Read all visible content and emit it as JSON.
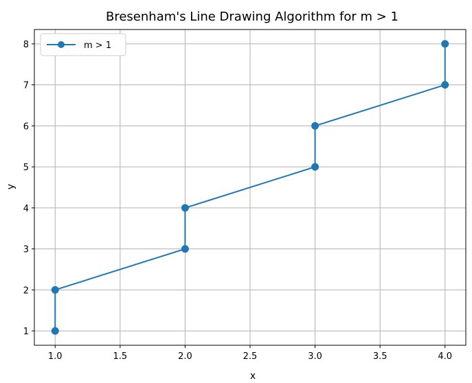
{
  "chart_data": {
    "type": "line",
    "title": "Bresenham's Line Drawing Algorithm for m > 1",
    "xlabel": "x",
    "ylabel": "y",
    "xlim": [
      0.84,
      4.16
    ],
    "ylim": [
      0.65,
      8.35
    ],
    "xticks": [
      1.0,
      1.5,
      2.0,
      2.5,
      3.0,
      3.5,
      4.0
    ],
    "xtick_labels": [
      "1.0",
      "1.5",
      "2.0",
      "2.5",
      "3.0",
      "3.5",
      "4.0"
    ],
    "yticks": [
      1,
      2,
      3,
      4,
      5,
      6,
      7,
      8
    ],
    "ytick_labels": [
      "1",
      "2",
      "3",
      "4",
      "5",
      "6",
      "7",
      "8"
    ],
    "grid": true,
    "legend_position": "top-left",
    "series": [
      {
        "name": "m > 1",
        "color": "#1f77b4",
        "marker": "circle",
        "x": [
          1,
          1,
          2,
          2,
          3,
          3,
          4,
          4
        ],
        "y": [
          1,
          2,
          3,
          4,
          5,
          6,
          7,
          8
        ]
      }
    ]
  }
}
